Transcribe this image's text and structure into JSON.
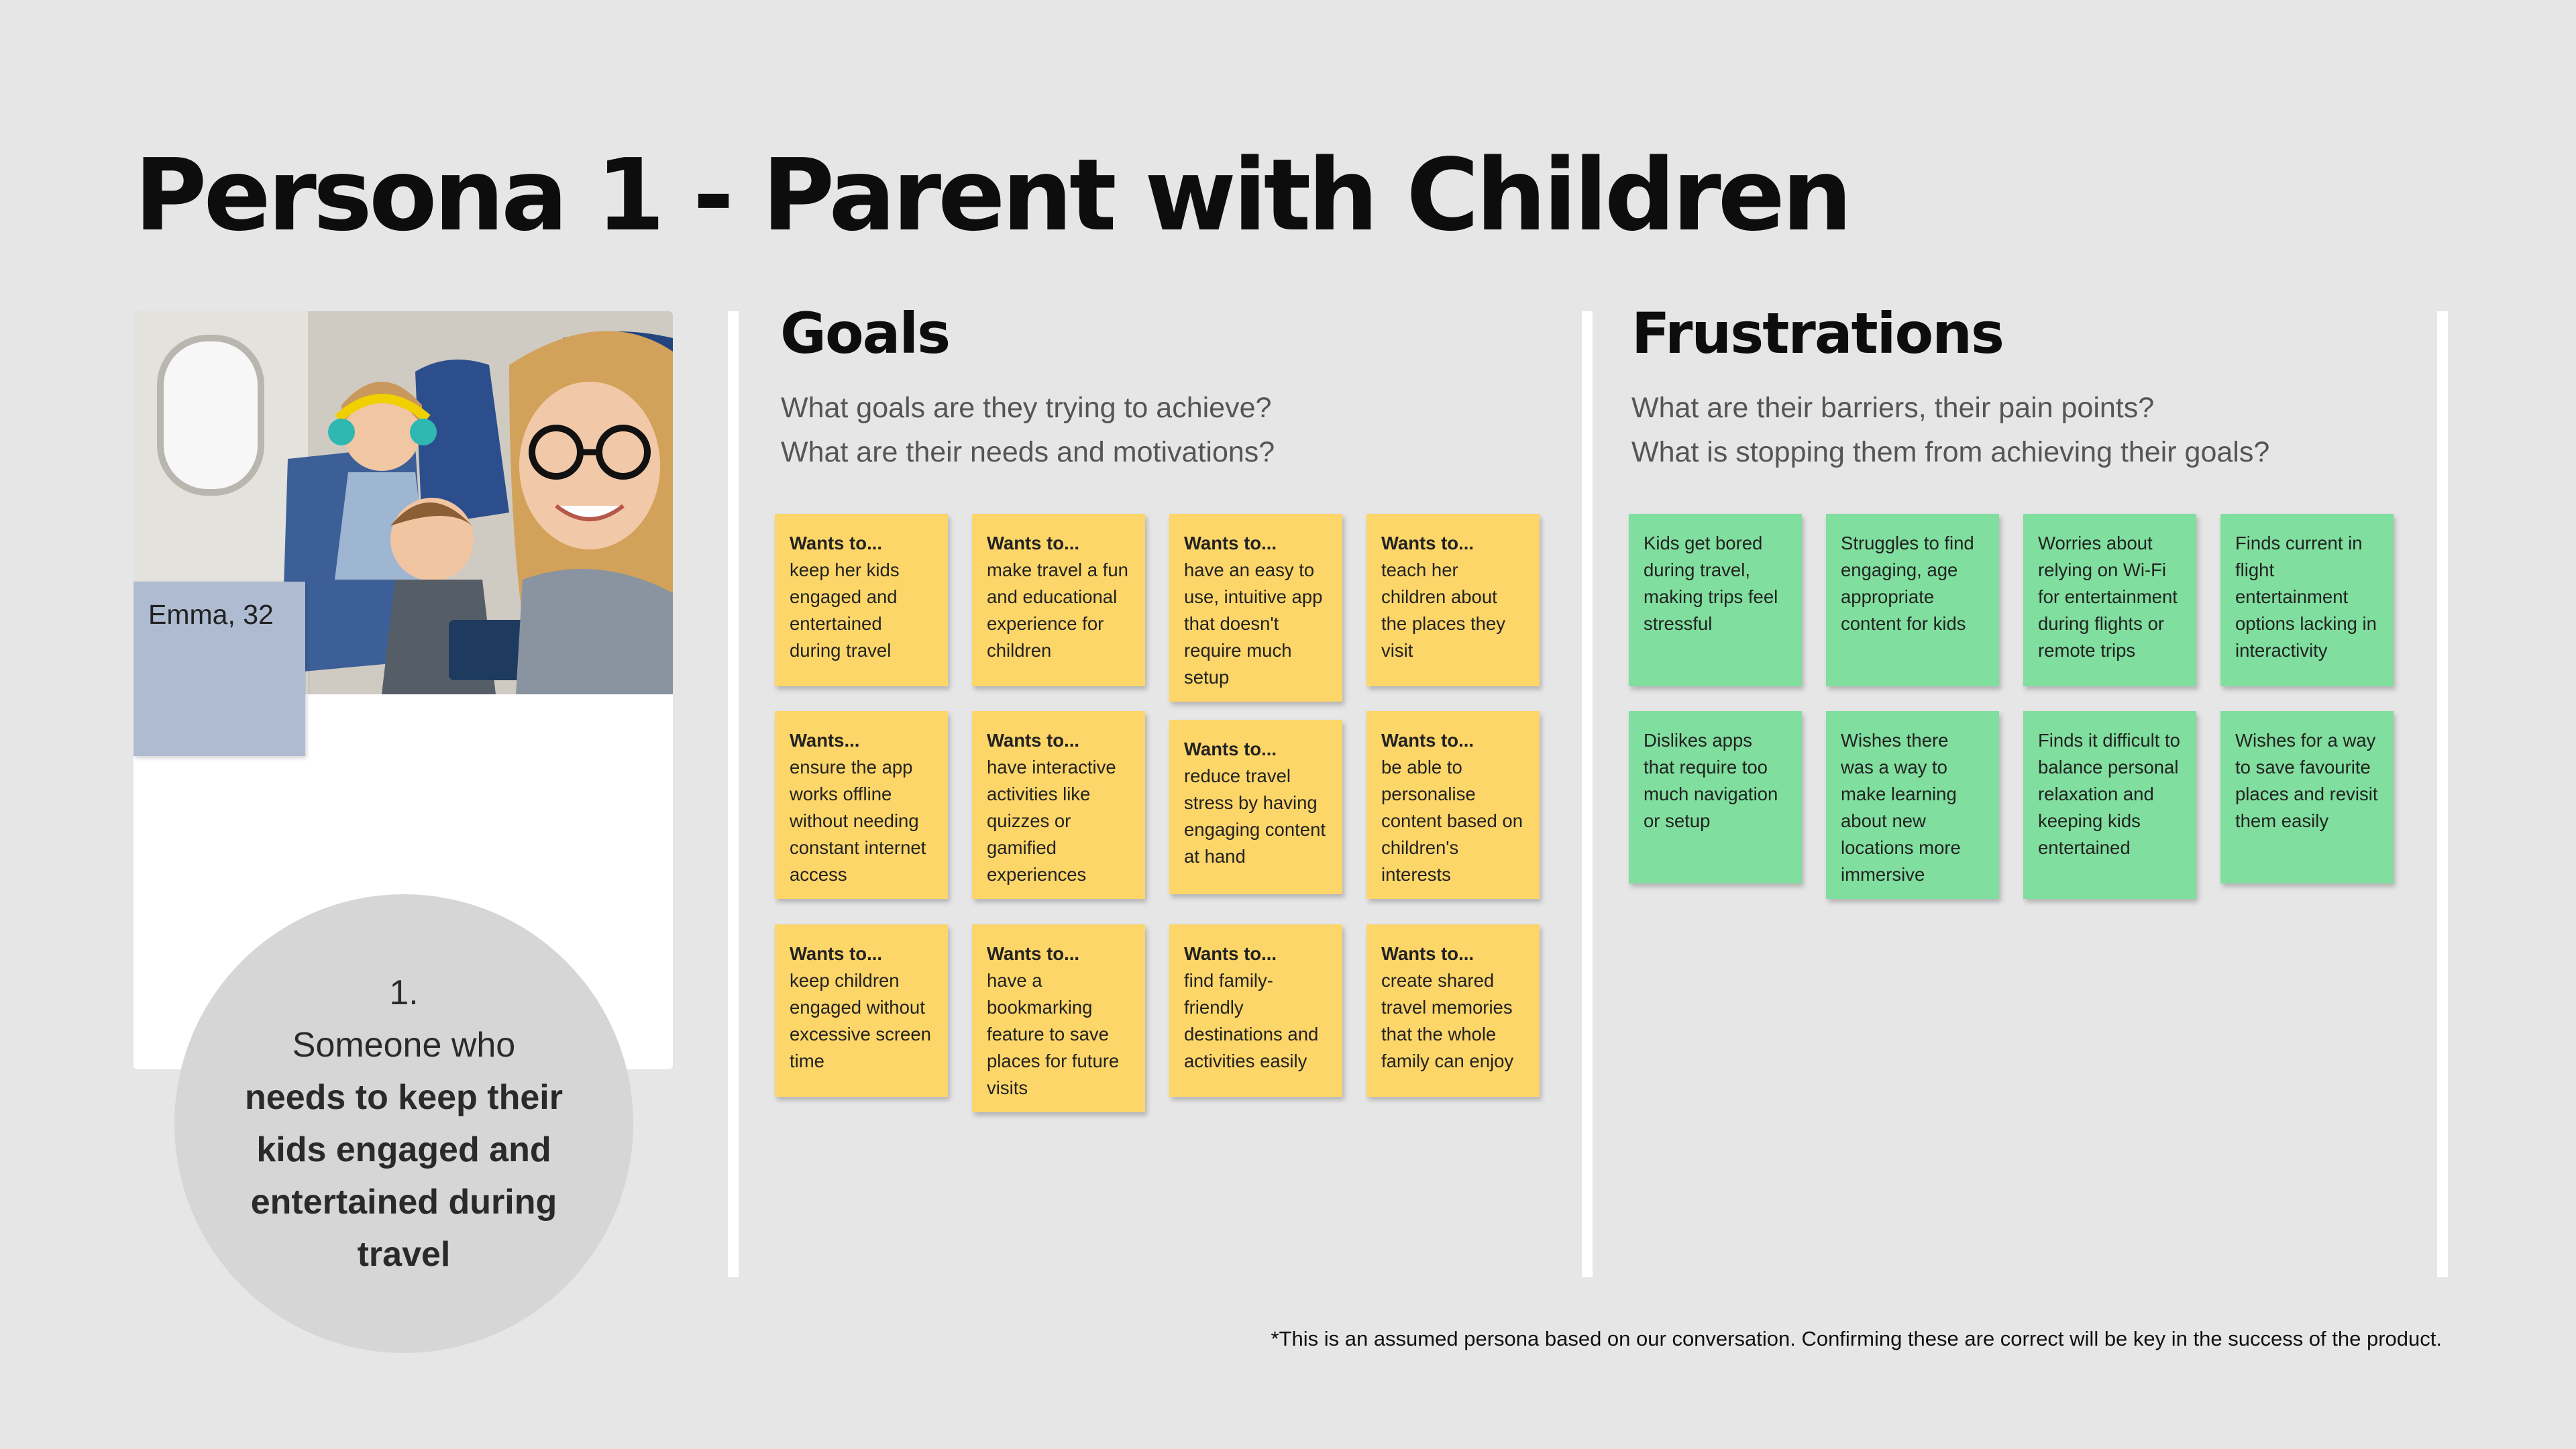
{
  "title": "Persona 1 - Parent with Children",
  "persona": {
    "name": "Emma, 32",
    "summary_number": "1.",
    "summary_lead": "Someone who",
    "summary_bold": "needs to keep their kids engaged and entertained during travel"
  },
  "goals": {
    "title": "Goals",
    "subtitle_line1": "What goals are they trying to achieve?",
    "subtitle_line2": "What are their needs and motivations?",
    "notes": [
      {
        "heading": "Wants to...",
        "text": "keep her kids engaged and entertained during travel"
      },
      {
        "heading": "Wants to...",
        "text": "make travel a fun and educational experience for children"
      },
      {
        "heading": "Wants to...",
        "text": "have an easy to use, intuitive app that doesn't require much setup"
      },
      {
        "heading": "Wants to...",
        "text": "teach her children about the places they visit"
      },
      {
        "heading": "Wants...",
        "text": "ensure the app works offline without needing constant internet access"
      },
      {
        "heading": "Wants to...",
        "text": "have interactive activities like quizzes or gamified experiences"
      },
      {
        "heading": "Wants to...",
        "text": "reduce travel stress by having engaging content at hand"
      },
      {
        "heading": "Wants to...",
        "text": "be able to personalise content based on children's interests"
      },
      {
        "heading": "Wants to...",
        "text": "keep children engaged without excessive screen time"
      },
      {
        "heading": "Wants to...",
        "text": "have a bookmarking feature to save places for future visits"
      },
      {
        "heading": "Wants to...",
        "text": "find family-friendly destinations and activities easily"
      },
      {
        "heading": "Wants to...",
        "text": "create shared travel memories that the whole family can enjoy"
      }
    ]
  },
  "frustrations": {
    "title": "Frustrations",
    "subtitle_line1": "What are their barriers, their pain points?",
    "subtitle_line2": "What is stopping them from achieving their goals?",
    "notes": [
      {
        "text": "Kids get bored during travel, making trips feel stressful"
      },
      {
        "text": "Struggles to find engaging, age appropriate content for kids"
      },
      {
        "text": "Worries about relying on Wi-Fi for entertainment during flights or remote trips"
      },
      {
        "text": "Finds current in flight entertainment options lacking in interactivity"
      },
      {
        "text": "Dislikes apps that require too much navigation or setup"
      },
      {
        "text": "Wishes there was a way to make learning about new locations more immersive"
      },
      {
        "text": "Finds it difficult to balance personal relaxation and keeping kids entertained"
      },
      {
        "text": "Wishes for a way to save favourite places and revisit them easily"
      }
    ]
  },
  "footnote": "*This is an assumed persona based on our conversation. Confirming these are correct will be key in the success of the product.",
  "colors": {
    "background": "#e6e6e6",
    "goal_note": "#fdd669",
    "frustration_note": "#80de9e",
    "name_tag": "#aebbd1",
    "summary_circle": "#d6d6d6"
  }
}
